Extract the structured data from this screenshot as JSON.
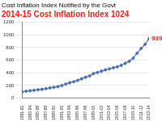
{
  "chart_data": {
    "type": "line",
    "title": "Cost Inflation Index Notified by the Govt",
    "subtitle": "2014-15 Cost Inflation Index 1024",
    "categories": [
      "1981-82",
      null,
      "1983-84",
      null,
      "1985-86",
      null,
      "1987-88",
      null,
      "1989-90",
      null,
      "1991-92",
      null,
      "1993-94",
      null,
      "1995-96",
      null,
      "1997-98",
      null,
      "1999-00",
      null,
      "2001-02",
      null,
      "2003-04",
      null,
      "2005-06",
      null,
      "2007-08",
      null,
      "2009-10",
      null,
      "2011-12",
      null,
      "2013-14"
    ],
    "values": [
      100,
      109,
      116,
      125,
      133,
      140,
      150,
      161,
      172,
      182,
      199,
      223,
      244,
      259,
      281,
      305,
      331,
      351,
      389,
      406,
      426,
      447,
      463,
      480,
      497,
      519,
      551,
      582,
      632,
      711,
      785,
      852,
      939
    ],
    "color": "#4a6fb3",
    "marker": "diamond",
    "ylim": [
      0,
      1200
    ],
    "yticks": [
      0,
      200,
      400,
      600,
      800,
      1000,
      1200
    ],
    "grid": true,
    "annotations": [
      {
        "text": "939",
        "x": "2013-14",
        "y": 939
      }
    ]
  }
}
